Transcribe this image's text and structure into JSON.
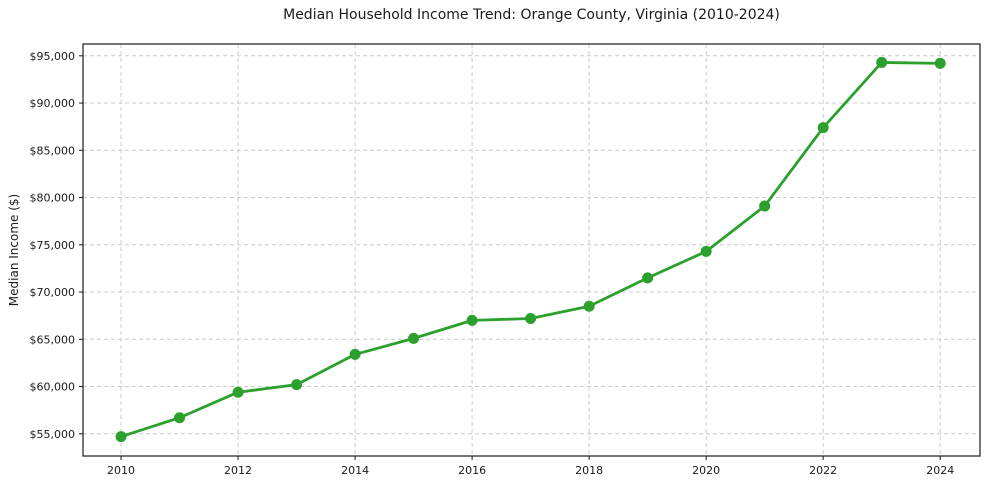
{
  "chart_data": {
    "type": "line",
    "title": "Median Household Income Trend: Orange County, Virginia (2010-2024)",
    "ylabel": "Median Income ($)",
    "xlabel": "",
    "x": [
      2010,
      2011,
      2012,
      2013,
      2014,
      2015,
      2016,
      2017,
      2018,
      2019,
      2020,
      2021,
      2022,
      2023,
      2024
    ],
    "series": [
      {
        "name": "Median Household Income",
        "values": [
          54700,
          56700,
          59400,
          60200,
          63400,
          65100,
          67000,
          67200,
          68500,
          71500,
          74300,
          79100,
          87400,
          94300,
          94200
        ]
      }
    ],
    "x_ticks": [
      2010,
      2012,
      2014,
      2016,
      2018,
      2020,
      2022,
      2024
    ],
    "x_tick_labels": [
      "2010",
      "2012",
      "2014",
      "2016",
      "2018",
      "2020",
      "2022",
      "2024"
    ],
    "y_ticks": [
      55000,
      60000,
      65000,
      70000,
      75000,
      80000,
      85000,
      90000,
      95000
    ],
    "y_tick_labels": [
      "$55,000",
      "$60,000",
      "$65,000",
      "$70,000",
      "$75,000",
      "$80,000",
      "$85,000",
      "$90,000",
      "$95,000"
    ],
    "xlim": [
      2009.35,
      2024.68
    ],
    "ylim": [
      52650,
      96250
    ],
    "grid": true,
    "grid_style": "dashed",
    "legend": false,
    "marker": "circle",
    "colors": {
      "line": "#2ca02c",
      "marker": "#2ca02c",
      "grid": "#cccccc",
      "axis": "#1a1a1a",
      "text": "#1a1a1a",
      "background": "#ffffff"
    }
  }
}
